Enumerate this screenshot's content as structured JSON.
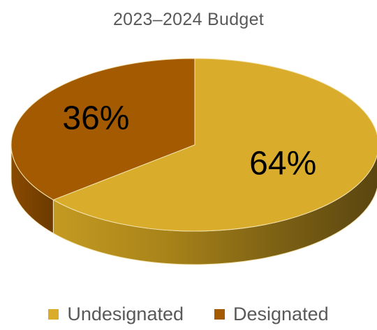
{
  "chart_data": {
    "type": "pie",
    "title": "2023–2024 Budget",
    "categories": [
      "Undesignated",
      "Designated"
    ],
    "values": [
      64,
      36
    ],
    "value_labels": [
      "64%",
      "36%"
    ],
    "colors": [
      "#d9ad2b",
      "#a35a00"
    ],
    "legend_position": "bottom",
    "style": "3d"
  }
}
